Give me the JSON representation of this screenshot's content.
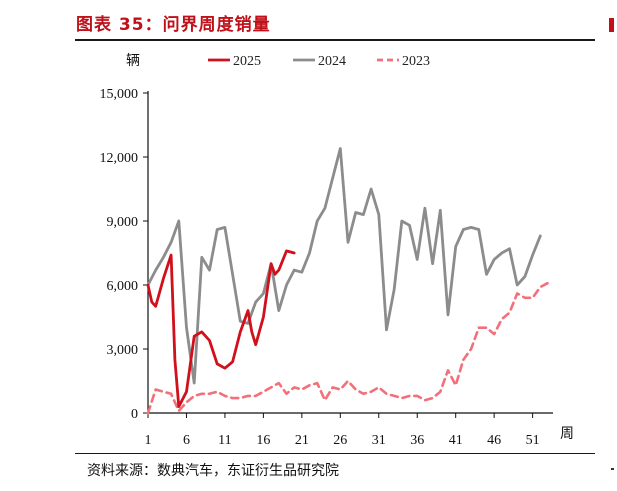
{
  "title": "图表 35：问界周度销量",
  "source": "资料来源：数典汽车，东证衍生品研究院",
  "chart_data": {
    "type": "line",
    "ylabel": "辆",
    "xlabel": "周",
    "ylim": [
      0,
      15000
    ],
    "y_ticks": [
      "15,000",
      "12,000",
      "9,000",
      "6,000",
      "3,000",
      "0"
    ],
    "y_tick_values": [
      15000,
      12000,
      9000,
      6000,
      3000,
      0
    ],
    "x_ticks": [
      "1",
      "6",
      "11",
      "16",
      "21",
      "26",
      "31",
      "36",
      "41",
      "46",
      "51"
    ],
    "x_tick_values": [
      1,
      6,
      11,
      16,
      21,
      26,
      31,
      36,
      41,
      46,
      51
    ],
    "xlim": [
      1,
      53
    ],
    "grid": false,
    "legend_position": "top",
    "series": [
      {
        "name": "2025",
        "color": "#d0101b",
        "style": "solid",
        "points": [
          [
            1,
            6000
          ],
          [
            1.5,
            5200
          ],
          [
            2,
            5000
          ],
          [
            3,
            6300
          ],
          [
            4,
            7400
          ],
          [
            4.5,
            2500
          ],
          [
            5,
            300
          ],
          [
            6,
            1000
          ],
          [
            7,
            3600
          ],
          [
            8,
            3800
          ],
          [
            9,
            3400
          ],
          [
            10,
            2300
          ],
          [
            11,
            2100
          ],
          [
            12,
            2400
          ],
          [
            13,
            3800
          ],
          [
            14,
            4800
          ],
          [
            14.5,
            3800
          ],
          [
            15,
            3200
          ],
          [
            16,
            4500
          ],
          [
            17,
            7000
          ],
          [
            17.5,
            6500
          ],
          [
            18,
            6700
          ],
          [
            19,
            7600
          ],
          [
            20,
            7500
          ]
        ]
      },
      {
        "name": "2024",
        "color": "#8c8c8c",
        "style": "solid",
        "points": [
          [
            1,
            6000
          ],
          [
            2,
            6700
          ],
          [
            3,
            7300
          ],
          [
            4,
            8000
          ],
          [
            5,
            9000
          ],
          [
            6,
            4000
          ],
          [
            7,
            1400
          ],
          [
            8,
            7300
          ],
          [
            9,
            6700
          ],
          [
            10,
            8600
          ],
          [
            11,
            8700
          ],
          [
            12,
            6500
          ],
          [
            13,
            4300
          ],
          [
            14,
            4200
          ],
          [
            15,
            5200
          ],
          [
            16,
            5600
          ],
          [
            17,
            7000
          ],
          [
            18,
            4800
          ],
          [
            19,
            6000
          ],
          [
            20,
            6700
          ],
          [
            21,
            6600
          ],
          [
            22,
            7500
          ],
          [
            23,
            9000
          ],
          [
            24,
            9600
          ],
          [
            25,
            11000
          ],
          [
            26,
            12400
          ],
          [
            27,
            8000
          ],
          [
            28,
            9400
          ],
          [
            29,
            9300
          ],
          [
            30,
            10500
          ],
          [
            31,
            9300
          ],
          [
            32,
            3900
          ],
          [
            33,
            5800
          ],
          [
            34,
            9000
          ],
          [
            35,
            8800
          ],
          [
            36,
            7200
          ],
          [
            37,
            9600
          ],
          [
            38,
            7000
          ],
          [
            39,
            9500
          ],
          [
            40,
            4600
          ],
          [
            41,
            7800
          ],
          [
            42,
            8600
          ],
          [
            43,
            8700
          ],
          [
            44,
            8600
          ],
          [
            45,
            6500
          ],
          [
            46,
            7200
          ],
          [
            47,
            7500
          ],
          [
            48,
            7700
          ],
          [
            49,
            6000
          ],
          [
            50,
            6400
          ],
          [
            51,
            7400
          ],
          [
            52,
            8300
          ]
        ]
      },
      {
        "name": "2023",
        "color": "#f2707a",
        "style": "dashed",
        "points": [
          [
            1,
            0
          ],
          [
            2,
            1100
          ],
          [
            3,
            1000
          ],
          [
            4,
            900
          ],
          [
            5,
            100
          ],
          [
            6,
            500
          ],
          [
            7,
            800
          ],
          [
            8,
            900
          ],
          [
            9,
            900
          ],
          [
            10,
            1000
          ],
          [
            11,
            800
          ],
          [
            12,
            700
          ],
          [
            13,
            700
          ],
          [
            14,
            800
          ],
          [
            15,
            800
          ],
          [
            16,
            1000
          ],
          [
            17,
            1200
          ],
          [
            18,
            1400
          ],
          [
            19,
            900
          ],
          [
            20,
            1200
          ],
          [
            21,
            1100
          ],
          [
            22,
            1300
          ],
          [
            23,
            1400
          ],
          [
            24,
            600
          ],
          [
            25,
            1200
          ],
          [
            26,
            1100
          ],
          [
            27,
            1500
          ],
          [
            28,
            1100
          ],
          [
            29,
            900
          ],
          [
            30,
            1000
          ],
          [
            31,
            1200
          ],
          [
            32,
            900
          ],
          [
            33,
            800
          ],
          [
            34,
            700
          ],
          [
            35,
            800
          ],
          [
            36,
            800
          ],
          [
            37,
            600
          ],
          [
            38,
            700
          ],
          [
            39,
            1000
          ],
          [
            40,
            2000
          ],
          [
            41,
            1300
          ],
          [
            42,
            2500
          ],
          [
            43,
            3000
          ],
          [
            44,
            4000
          ],
          [
            45,
            4000
          ],
          [
            46,
            3700
          ],
          [
            47,
            4400
          ],
          [
            48,
            4700
          ],
          [
            49,
            5600
          ],
          [
            50,
            5400
          ],
          [
            51,
            5400
          ],
          [
            52,
            5900
          ],
          [
            53,
            6100
          ]
        ]
      }
    ]
  }
}
